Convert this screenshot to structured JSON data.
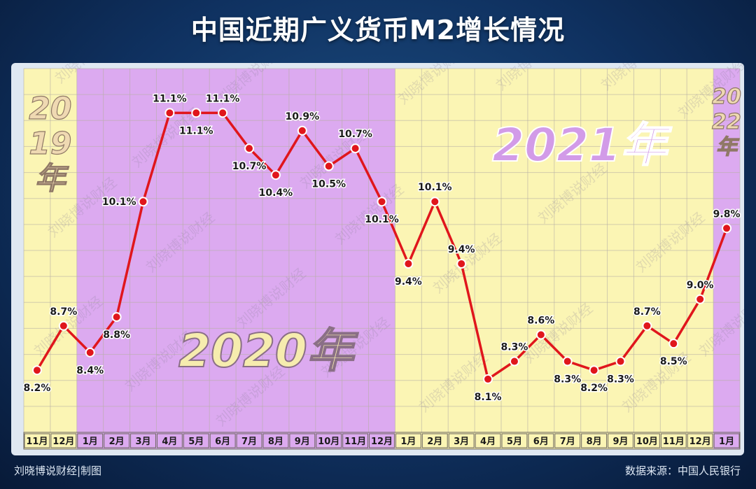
{
  "title": "中国近期广义货币M2增长情况",
  "footer": {
    "credit": "刘晓博说财经|制图",
    "source": "数据来源：中国人民银行"
  },
  "watermark": "刘晓博说财经",
  "colors": {
    "background": "#0f3160",
    "yellow_band": "#fbf5b4",
    "purple_band": "#dcaaf0",
    "line": "#e0161c",
    "marker_fill": "#e0161c",
    "marker_stroke": "#ffffff",
    "year_label": "#f6ecae",
    "year_label_2021": "#d29be8"
  },
  "chart_data": {
    "type": "line",
    "title": "",
    "xlabel": "",
    "ylabel": "",
    "categories": [
      "11月",
      "12月",
      "1月",
      "2月",
      "3月",
      "4月",
      "5月",
      "6月",
      "7月",
      "8月",
      "9月",
      "10月",
      "11月",
      "12月",
      "1月",
      "2月",
      "3月",
      "4月",
      "5月",
      "6月",
      "7月",
      "8月",
      "9月",
      "10月",
      "11月",
      "12月",
      "1月"
    ],
    "values": [
      8.2,
      8.7,
      8.4,
      8.8,
      10.1,
      11.1,
      11.1,
      11.1,
      10.7,
      10.4,
      10.9,
      10.5,
      10.7,
      10.1,
      9.4,
      10.1,
      9.4,
      8.1,
      8.3,
      8.6,
      8.3,
      8.2,
      8.3,
      8.7,
      8.5,
      9.0,
      9.8
    ],
    "data_labels": [
      "8.2%",
      "8.7%",
      "8.4%",
      "8.8%",
      "10.1%",
      "11.1%",
      "11.1%",
      "11.1%",
      "10.7%",
      "10.4%",
      "10.9%",
      "10.5%",
      "10.7%",
      "10.1%",
      "9.4%",
      "10.1%",
      "9.4%",
      "8.1%",
      "8.3%",
      "8.6%",
      "8.3%",
      "8.2%",
      "8.3%",
      "8.7%",
      "8.5%",
      "9.0%",
      "9.8%"
    ],
    "label_positions": [
      "below",
      "above",
      "below",
      "below",
      "left",
      "above",
      "below",
      "above",
      "below",
      "below",
      "above",
      "below",
      "above",
      "below",
      "below",
      "above",
      "above",
      "below",
      "above",
      "above",
      "below",
      "below",
      "below",
      "above",
      "below",
      "above",
      "above"
    ],
    "ylim": [
      7.5,
      11.6
    ],
    "grid": true,
    "legend": "none",
    "years": [
      {
        "label": "2019年",
        "lines": [
          "20",
          "19",
          "年"
        ],
        "start": 0,
        "end": 1,
        "band": "yellow"
      },
      {
        "label": "2020年",
        "lines": [
          "2020年"
        ],
        "start": 2,
        "end": 13,
        "band": "purple"
      },
      {
        "label": "2021年",
        "lines": [
          "2021年"
        ],
        "start": 14,
        "end": 25,
        "band": "yellow"
      },
      {
        "label": "2022年",
        "lines": [
          "20",
          "22",
          "年"
        ],
        "start": 26,
        "end": 26,
        "band": "purple"
      }
    ]
  }
}
